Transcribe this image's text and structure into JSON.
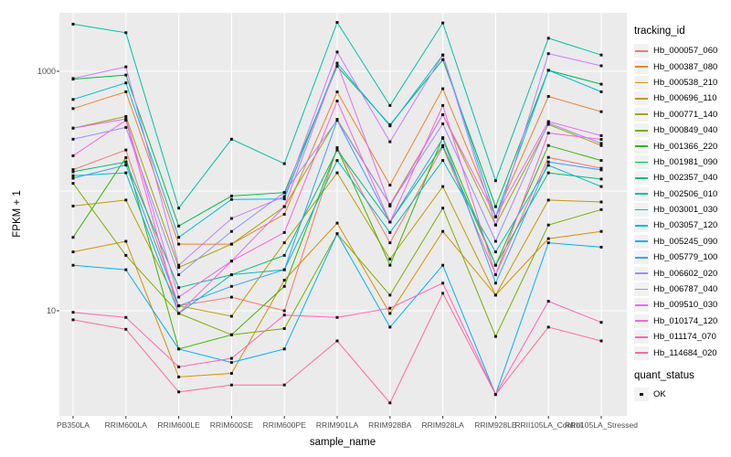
{
  "chart_data": {
    "type": "line",
    "title": "",
    "xlabel": "sample_name",
    "ylabel": "FPKM + 1",
    "y_scale": "log10",
    "ylim": [
      1.3,
      3200
    ],
    "y_ticks": [
      1000,
      10
    ],
    "y_gridlines": [
      10,
      100,
      1000
    ],
    "grid": true,
    "panel_bg": "#EBEBEB",
    "gridline_color": "#FFFFFF",
    "point_color": "#111111",
    "point_shape": "square",
    "legend_position": "right",
    "categories": [
      "PB350LA",
      "RRIM600LA",
      "RRIM600LE",
      "RRIM600SE",
      "RRIM600PE",
      "RRIM901LA",
      "RRIM928BA",
      "RRIM928LA",
      "RRIM928LE",
      "RRII105LA_Control",
      "RRII105LA_Stressed"
    ],
    "legend": {
      "tracking_title": "tracking_id",
      "quant_title": "quant_status",
      "quant_label": "OK"
    },
    "series": [
      {
        "name": "Hb_000057_060",
        "color": "#F8766D",
        "values": [
          151,
          220,
          11,
          13,
          10,
          230,
          37,
          234,
          20,
          191,
          155
        ]
      },
      {
        "name": "Hb_000387_080",
        "color": "#EA8331",
        "values": [
          488,
          675,
          36,
          36,
          64,
          673,
          112,
          715,
          61,
          617,
          460
        ]
      },
      {
        "name": "Hb_000538_210",
        "color": "#D89000",
        "values": [
          31,
          38,
          2.8,
          3,
          18,
          54,
          9.5,
          46,
          13.5,
          40,
          46
        ]
      },
      {
        "name": "Hb_000696_110",
        "color": "#C09B00",
        "values": [
          75,
          84,
          11,
          9,
          37,
          142,
          27,
          109,
          13.5,
          84,
          81
        ]
      },
      {
        "name": "Hb_000771_140",
        "color": "#A3A500",
        "values": [
          335,
          420,
          23,
          36,
          74,
          397,
          77,
          434,
          52,
          360,
          240
        ]
      },
      {
        "name": "Hb_000849_040",
        "color": "#7CAE00",
        "values": [
          116,
          29,
          9.5,
          6.3,
          7.1,
          44,
          13.5,
          72,
          6.1,
          52,
          70
        ]
      },
      {
        "name": "Hb_001366_220",
        "color": "#39B600",
        "values": [
          41,
          190,
          4.8,
          6.3,
          16,
          227,
          24,
          279,
          24,
          240,
          180
        ]
      },
      {
        "name": "Hb_001981_090",
        "color": "#00BB4E",
        "values": [
          860,
          930,
          51,
          91,
          97,
          1100,
          357,
          1251,
          74,
          1019,
          781
        ]
      },
      {
        "name": "Hb_002357_040",
        "color": "#00BF7D",
        "values": [
          145,
          175,
          15.6,
          20,
          29,
          220,
          55,
          240,
          24,
          142,
          126
        ]
      },
      {
        "name": "Hb_002506_010",
        "color": "#00C1A3",
        "values": [
          2475,
          2100,
          72,
          271,
          169,
          2560,
          518,
          2535,
          122,
          1888,
          1368
        ]
      },
      {
        "name": "Hb_003001_030",
        "color": "#00BFC4",
        "values": [
          134,
          142,
          9.5,
          20,
          22,
          180,
          45,
          180,
          31,
          164,
          109
        ]
      },
      {
        "name": "Hb_003057_120",
        "color": "#00BAE0",
        "values": [
          582,
          800,
          41,
          85,
          86,
          1170,
          350,
          1368,
          61,
          1019,
          675
        ]
      },
      {
        "name": "Hb_005245_090",
        "color": "#00B0F6",
        "values": [
          24,
          22,
          4.8,
          3.7,
          4.8,
          44,
          7.3,
          24,
          2,
          37,
          34
        ]
      },
      {
        "name": "Hb_005779_100",
        "color": "#35A2FF",
        "values": [
          128,
          165,
          11,
          16,
          22,
          390,
          55,
          275,
          17,
          175,
          150
        ]
      },
      {
        "name": "Hb_006602_020",
        "color": "#9590FF",
        "values": [
          271,
          340,
          20,
          46,
          97,
          390,
          77,
          364,
          38,
          370,
          250
        ]
      },
      {
        "name": "Hb_006787_040",
        "color": "#C77CFF",
        "values": [
          870,
          1090,
          24,
          59,
          90,
          1450,
          258,
          1368,
          52,
          1405,
          1112
        ]
      },
      {
        "name": "Hb_009510_030",
        "color": "#E76BF3",
        "values": [
          335,
          400,
          13,
          26,
          74,
          1166,
          75,
          434,
          61,
          380,
          290
        ]
      },
      {
        "name": "Hb_010174_120",
        "color": "#FA62DB",
        "values": [
          197,
          390,
          9.5,
          26,
          45,
          565,
          55,
          518,
          20,
          305,
          270
        ]
      },
      {
        "name": "Hb_011174_070",
        "color": "#FF62BC",
        "values": [
          9.7,
          8.8,
          3.4,
          4,
          9.2,
          8.8,
          10.5,
          17,
          2,
          12,
          8
        ]
      },
      {
        "name": "Hb_114684_020",
        "color": "#FF6A98",
        "values": [
          8.4,
          7,
          2.1,
          2.4,
          2.4,
          5.6,
          1.7,
          14,
          2,
          7.3,
          5.6
        ]
      }
    ]
  }
}
